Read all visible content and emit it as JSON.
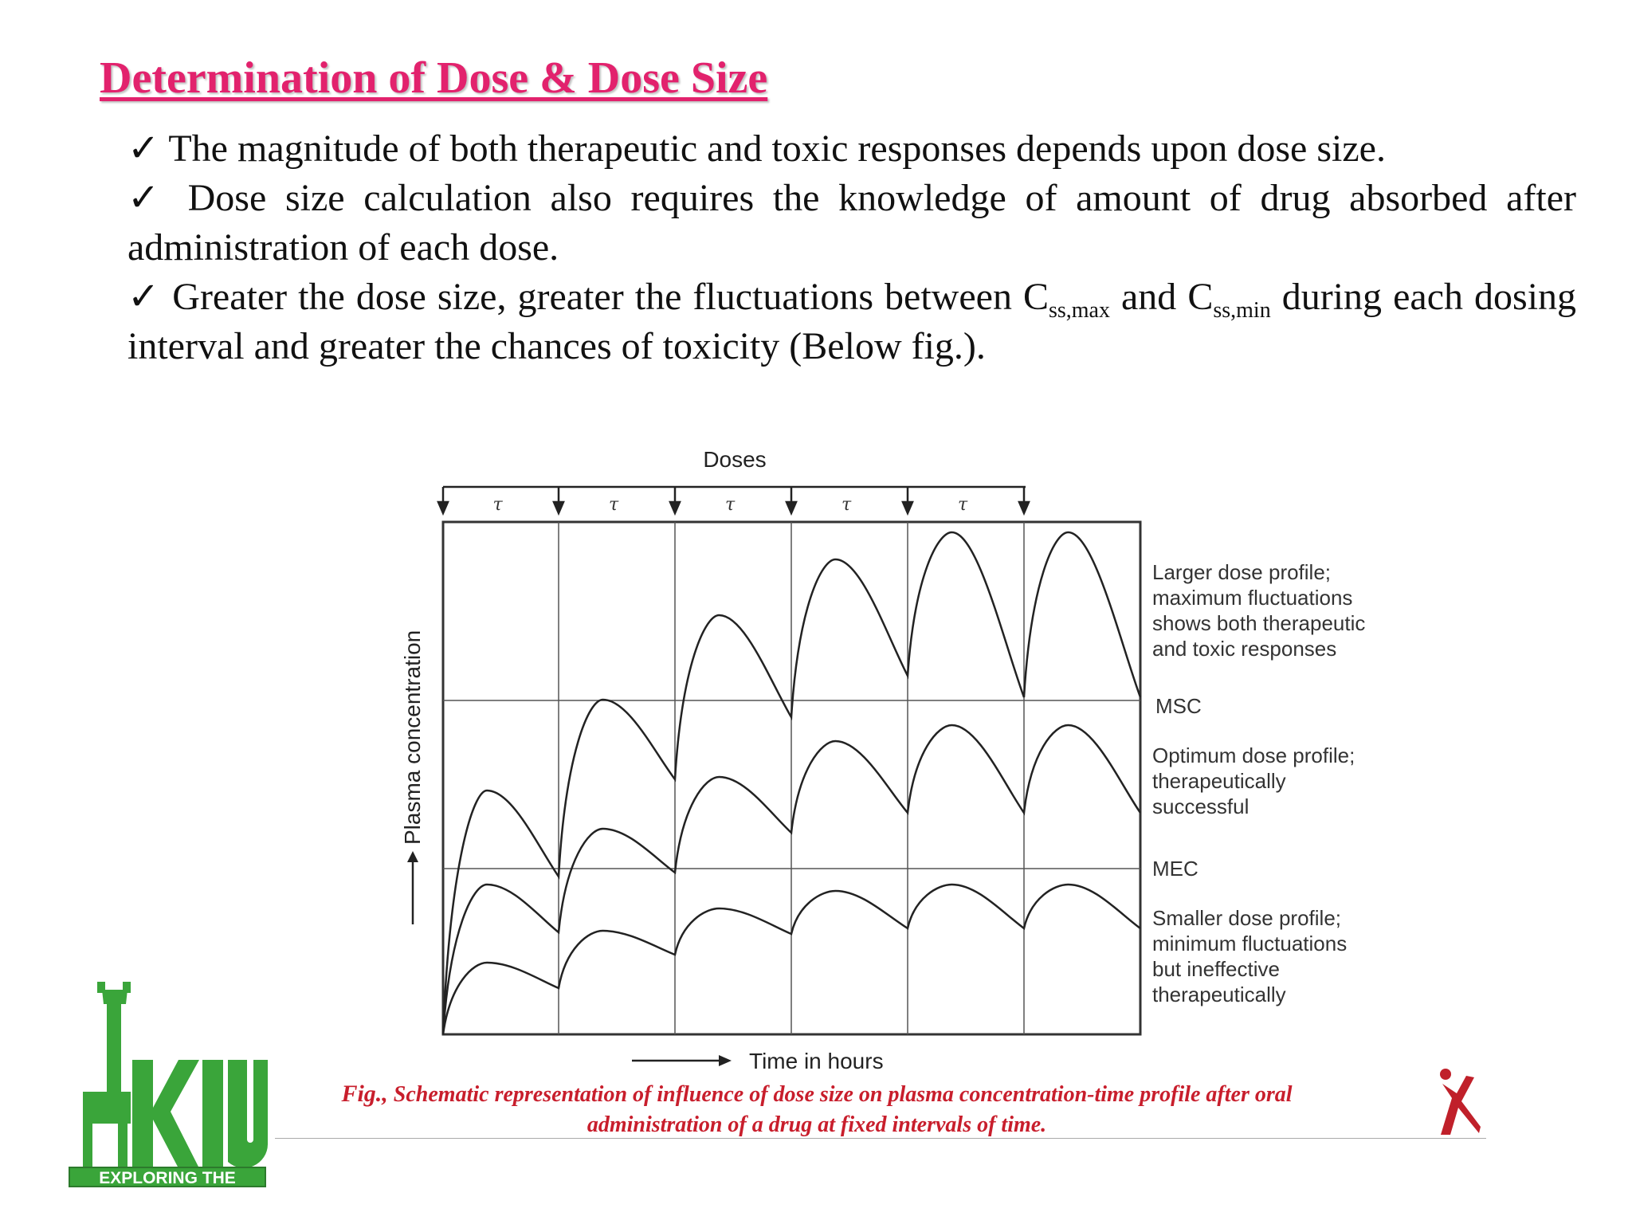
{
  "slide": {
    "title": "Determination of Dose & Dose Size",
    "check": "✓",
    "bullet1": "The magnitude of both therapeutic and toxic responses depends upon dose size.",
    "bullet2": "Dose size calculation also requires the knowledge of amount of drug absorbed after administration of each dose.",
    "bullet3_a": "Greater the dose size, greater the fluctuations between C",
    "bullet3_sub1": "ss,max",
    "bullet3_b": " and C",
    "bullet3_sub2": "ss,min",
    "bullet3_c": " during each dosing interval and greater the chances of toxicity (Below fig.)."
  },
  "figure": {
    "doses_label": "Doses",
    "tau": "τ",
    "ylabel": "Plasma concentration",
    "xlabel": "Time in hours",
    "labels": {
      "larger_1": "Larger dose profile;",
      "larger_2": "maximum fluctuations",
      "larger_3": "shows both therapeutic",
      "larger_4": "and toxic responses",
      "msc": "MSC",
      "optimum_1": "Optimum dose profile;",
      "optimum_2": "therapeutically",
      "optimum_3": "successful",
      "mec": "MEC",
      "smaller_1": "Smaller dose profile;",
      "smaller_2": "minimum fluctuations",
      "smaller_3": "but ineffective",
      "smaller_4": "therapeutically"
    },
    "caption_lead": "Fig.,",
    "caption_text": " Schematic representation of influence of dose size on plasma concentration-time profile after oral administration of a drug at fixed intervals of time."
  },
  "logo": {
    "letters": "KIU",
    "tagline": "EXPLORING THE HEIGHTS"
  },
  "colors": {
    "title": "#e2226d",
    "caption": "#c81e2c",
    "logo_green": "#3aa53a",
    "corner_logo": "#c0202a"
  }
}
